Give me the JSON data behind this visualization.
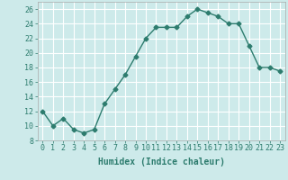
{
  "x": [
    0,
    1,
    2,
    3,
    4,
    5,
    6,
    7,
    8,
    9,
    10,
    11,
    12,
    13,
    14,
    15,
    16,
    17,
    18,
    19,
    20,
    21,
    22,
    23
  ],
  "y": [
    12,
    10,
    11,
    9.5,
    9,
    9.5,
    13,
    15,
    17,
    19.5,
    22,
    23.5,
    23.5,
    23.5,
    25,
    26,
    25.5,
    25,
    24,
    24,
    21,
    18,
    18,
    17.5
  ],
  "line_color": "#2d7c6e",
  "marker": "D",
  "marker_size": 2.5,
  "bg_color": "#cdeaea",
  "grid_color": "#ffffff",
  "xlabel": "Humidex (Indice chaleur)",
  "ylim": [
    8,
    27
  ],
  "xlim": [
    -0.5,
    23.5
  ],
  "yticks": [
    8,
    10,
    12,
    14,
    16,
    18,
    20,
    22,
    24,
    26
  ],
  "xticks": [
    0,
    1,
    2,
    3,
    4,
    5,
    6,
    7,
    8,
    9,
    10,
    11,
    12,
    13,
    14,
    15,
    16,
    17,
    18,
    19,
    20,
    21,
    22,
    23
  ],
  "tick_fontsize": 6,
  "xlabel_fontsize": 7,
  "linewidth": 1.0
}
